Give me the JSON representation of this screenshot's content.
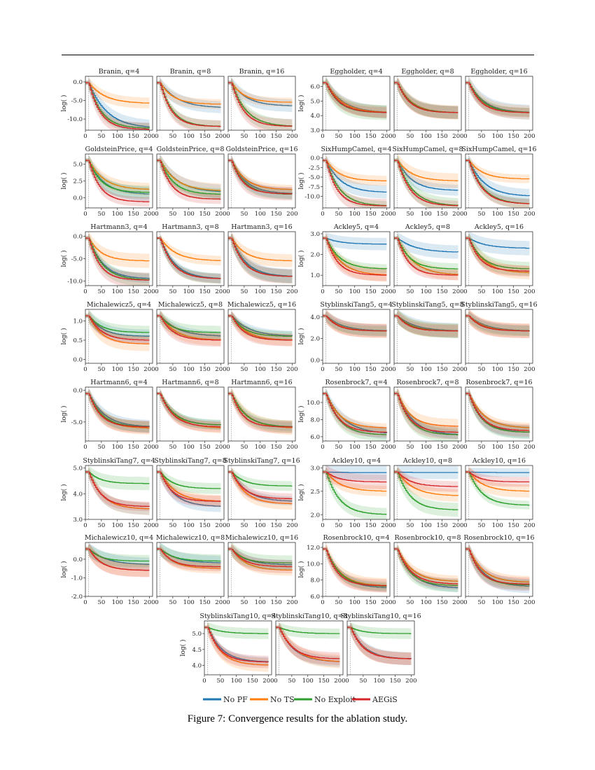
{
  "caption": "Figure 7: Convergence results for the ablation study.",
  "colors": {
    "No PF": "#1f77b4",
    "No TS": "#ff7f0e",
    "No Exploit": "#2ca02c",
    "AEGiS": "#d62728"
  },
  "legend": [
    "No PF",
    "No TS",
    "No Exploit",
    "AEGiS"
  ],
  "chart_data": [
    {
      "type": "line",
      "function": "Branin",
      "panels": [
        "Branin, q=4",
        "Branin, q=8",
        "Branin, q=16"
      ],
      "ylabel": "log(  )",
      "ylim": [
        -13,
        1.5
      ],
      "yticks": [
        0.0,
        -5.0,
        -10.0
      ],
      "xticks": [
        0,
        50,
        100,
        150,
        200
      ],
      "final": {
        "No PF": [
          -12.5,
          -7,
          -6.5
        ],
        "No TS": [
          -5.8,
          -6,
          -5.5
        ],
        "No Exploit": [
          -12.5,
          -12,
          -12
        ],
        "AEGiS": [
          -12.8,
          -12,
          -12
        ]
      }
    },
    {
      "type": "line",
      "function": "Eggholder",
      "panels": [
        "Eggholder, q=4",
        "Eggholder, q=8",
        "Eggholder, q=16"
      ],
      "ylabel": "log(  )",
      "ylim": [
        3.0,
        6.7
      ],
      "yticks": [
        6.0,
        5.0,
        4.0,
        3.0
      ],
      "xticks": [
        0,
        50,
        100,
        150,
        200
      ],
      "final": {
        "No PF": [
          4.2,
          4.2,
          4.2
        ],
        "No TS": [
          4.2,
          4.2,
          4.2
        ],
        "No Exploit": [
          4.2,
          4.2,
          4.2
        ],
        "AEGiS": [
          4.2,
          4.2,
          4.2
        ]
      }
    },
    {
      "type": "line",
      "function": "GoldsteinPrice",
      "panels": [
        "GoldsteinPrice, q=4",
        "GoldsteinPrice, q=8",
        "GoldsteinPrice, q=16"
      ],
      "ylabel": "log(  )",
      "ylim": [
        -1.5,
        6.5
      ],
      "yticks": [
        5.0,
        2.5,
        0.0
      ],
      "xticks": [
        0,
        50,
        100,
        150,
        200
      ],
      "final": {
        "No PF": [
          0.5,
          0.8,
          0.6
        ],
        "No TS": [
          1.2,
          1.0,
          1.2
        ],
        "No Exploit": [
          0.8,
          0.5,
          0.5
        ],
        "AEGiS": [
          -0.6,
          -0.2,
          0.6
        ]
      }
    },
    {
      "type": "line",
      "function": "SixHumpCamel",
      "panels": [
        "SixHumpCamel, q=4",
        "SixHumpCamel, q=8",
        "SixHumpCamel, q=16"
      ],
      "ylabel": "log(  )",
      "ylim": [
        -13,
        1
      ],
      "yticks": [
        0.0,
        -2.5,
        -5.0,
        -7.5,
        -10.0
      ],
      "xticks": [
        0,
        50,
        100,
        150,
        200
      ],
      "final": {
        "No PF": [
          -9,
          -8.5,
          -10
        ],
        "No TS": [
          -6,
          -6,
          -5.5
        ],
        "No Exploit": [
          -12.5,
          -12.5,
          -12
        ],
        "AEGiS": [
          -12.5,
          -12.5,
          -12
        ]
      }
    },
    {
      "type": "line",
      "function": "Hartmann3",
      "panels": [
        "Hartmann3, q=4",
        "Hartmann3, q=8",
        "Hartmann3, q=16"
      ],
      "ylabel": "log(  )",
      "ylim": [
        -11,
        1
      ],
      "yticks": [
        0.0,
        -5.0,
        -10.0
      ],
      "xticks": [
        0,
        50,
        100,
        150,
        200
      ],
      "final": {
        "No PF": [
          -9.5,
          -9.5,
          -9
        ],
        "No TS": [
          -5.5,
          -5.5,
          -5.5
        ],
        "No Exploit": [
          -9.8,
          -9.5,
          -9
        ],
        "AEGiS": [
          -9.8,
          -9.5,
          -9
        ]
      }
    },
    {
      "type": "line",
      "function": "Ackley5",
      "panels": [
        "Ackley5, q=4",
        "Ackley5, q=8",
        "Ackley5, q=16"
      ],
      "ylabel": "log(  )",
      "ylim": [
        0.5,
        3.1
      ],
      "yticks": [
        3.0,
        2.0,
        1.0
      ],
      "xticks": [
        0,
        50,
        100,
        150,
        200
      ],
      "final": {
        "No PF": [
          2.5,
          2.1,
          2.3
        ],
        "No TS": [
          1.0,
          1.0,
          1.1
        ],
        "No Exploit": [
          1.3,
          1.3,
          1.3
        ],
        "AEGiS": [
          1.0,
          1.0,
          1.2
        ]
      }
    },
    {
      "type": "line",
      "function": "Michalewicz5",
      "panels": [
        "Michalewicz5, q=4",
        "Michalewicz5, q=8",
        "Michalewicz5, q=16"
      ],
      "ylabel": "log(  )",
      "ylim": [
        -0.1,
        1.3
      ],
      "yticks": [
        1.0,
        0.5,
        0.0
      ],
      "xticks": [
        0,
        50,
        100,
        150,
        200
      ],
      "final": {
        "No PF": [
          0.6,
          0.6,
          0.6
        ],
        "No TS": [
          0.4,
          0.5,
          0.5
        ],
        "No Exploit": [
          0.7,
          0.7,
          0.6
        ],
        "AEGiS": [
          0.5,
          0.5,
          0.5
        ]
      }
    },
    {
      "type": "line",
      "function": "StyblinskiTang5",
      "panels": [
        "StyblinskiTang5, q=4",
        "StyblinskiTang5, q=8",
        "StyblinskiTang5, q=16"
      ],
      "ylabel": "log(  )",
      "ylim": [
        -0.3,
        4.7
      ],
      "yticks": [
        4.0,
        2.0,
        0.0
      ],
      "xticks": [
        0,
        50,
        100,
        150,
        200
      ],
      "final": {
        "No PF": [
          2.7,
          2.7,
          2.7
        ],
        "No TS": [
          2.7,
          2.7,
          2.7
        ],
        "No Exploit": [
          2.7,
          2.7,
          2.7
        ],
        "AEGiS": [
          2.7,
          2.7,
          2.7
        ]
      }
    },
    {
      "type": "line",
      "function": "Hartmann6",
      "panels": [
        "Hartmann6, q=4",
        "Hartmann6, q=8",
        "Hartmann6, q=16"
      ],
      "ylabel": "log(  )",
      "ylim": [
        -8,
        0.5
      ],
      "yticks": [
        0.0,
        -5.0
      ],
      "xticks": [
        0,
        50,
        100,
        150,
        200
      ],
      "final": {
        "No PF": [
          -5.8,
          -5.5,
          -5.8
        ],
        "No TS": [
          -6,
          -6,
          -6
        ],
        "No Exploit": [
          -5.8,
          -5.5,
          -5.8
        ],
        "AEGiS": [
          -5.8,
          -5.8,
          -5.8
        ]
      }
    },
    {
      "type": "line",
      "function": "Rosenbrock7",
      "panels": [
        "Rosenbrock7, q=4",
        "Rosenbrock7, q=8",
        "Rosenbrock7, q=16"
      ],
      "ylabel": "log(  )",
      "ylim": [
        5.5,
        11.8
      ],
      "yticks": [
        10.0,
        8.0,
        6.0
      ],
      "xticks": [
        0,
        50,
        100,
        150,
        200
      ],
      "final": {
        "No PF": [
          6.3,
          6.2,
          6.5
        ],
        "No TS": [
          7.0,
          7.2,
          7.0
        ],
        "No Exploit": [
          6.2,
          6.2,
          6.5
        ],
        "AEGiS": [
          6.5,
          6.5,
          6.7
        ]
      }
    },
    {
      "type": "line",
      "function": "StyblinskiTang7",
      "panels": [
        "StyblinskiTang7, q=4",
        "StyblinskiTang7, q=8",
        "StyblinskiTang7, q=16"
      ],
      "ylabel": "log(  )",
      "ylim": [
        3.0,
        5.1
      ],
      "yticks": [
        5.0,
        4.0,
        3.0
      ],
      "xticks": [
        0,
        50,
        100,
        150,
        200
      ],
      "final": {
        "No PF": [
          3.4,
          3.5,
          3.7
        ],
        "No TS": [
          3.4,
          3.7,
          3.6
        ],
        "No Exploit": [
          4.4,
          4.2,
          4.3
        ],
        "AEGiS": [
          3.5,
          3.7,
          3.8
        ]
      }
    },
    {
      "type": "line",
      "function": "Ackley10",
      "panels": [
        "Ackley10, q=4",
        "Ackley10, q=8",
        "Ackley10, q=16"
      ],
      "ylabel": "log(  )",
      "ylim": [
        1.9,
        3.05
      ],
      "yticks": [
        3.0,
        2.5,
        2.0
      ],
      "xticks": [
        0,
        50,
        100,
        150,
        200
      ],
      "final": {
        "No PF": [
          2.9,
          2.9,
          2.9
        ],
        "No TS": [
          2.5,
          2.4,
          2.5
        ],
        "No Exploit": [
          2.0,
          2.1,
          2.2
        ],
        "AEGiS": [
          2.7,
          2.6,
          2.7
        ]
      }
    },
    {
      "type": "line",
      "function": "Michalewicz10",
      "panels": [
        "Michalewicz10, q=4",
        "Michalewicz10, q=8",
        "Michalewicz10, q=16"
      ],
      "ylabel": "log(  )",
      "ylim": [
        -2.0,
        0.9
      ],
      "yticks": [
        1.0,
        0.0,
        -1.0,
        -2.0
      ],
      "xticks": [
        0,
        50,
        100,
        150,
        200
      ],
      "final": {
        "No PF": [
          -0.3,
          -0.2,
          -0.3
        ],
        "No TS": [
          -0.6,
          -0.5,
          -0.6
        ],
        "No Exploit": [
          -0.1,
          -0.1,
          -0.2
        ],
        "AEGiS": [
          -0.6,
          -0.4,
          -0.4
        ]
      }
    },
    {
      "type": "line",
      "function": "Rosenbrock10",
      "panels": [
        "Rosenbrock10, q=4",
        "Rosenbrock10, q=8",
        "Rosenbrock10, q=16"
      ],
      "ylabel": "log(  )",
      "ylim": [
        6.0,
        12.6
      ],
      "yticks": [
        12.0,
        10.0,
        8.0,
        6.0
      ],
      "xticks": [
        0,
        50,
        100,
        150,
        200
      ],
      "final": {
        "No PF": [
          7.0,
          7.0,
          7.2
        ],
        "No TS": [
          7.3,
          7.8,
          7.7
        ],
        "No Exploit": [
          7.2,
          7.3,
          7.4
        ],
        "AEGiS": [
          7.3,
          7.5,
          7.5
        ]
      }
    },
    {
      "type": "line",
      "function": "StyblinskiTang10",
      "panels": [
        "StyblinskiTang10, q=4",
        "StyblinskiTang10, q=8",
        "StyblinskiTang10, q=16"
      ],
      "ylabel": "log(  )",
      "ylim": [
        3.7,
        5.4
      ],
      "yticks": [
        5.0,
        4.5,
        4.0
      ],
      "xticks": [
        0,
        50,
        100,
        150,
        200
      ],
      "final": {
        "No PF": [
          4.1,
          4.1,
          4.2
        ],
        "No TS": [
          4.0,
          4.1,
          4.2
        ],
        "No Exploit": [
          5.0,
          5.0,
          5.0
        ],
        "AEGiS": [
          4.1,
          4.2,
          4.2
        ]
      }
    }
  ]
}
